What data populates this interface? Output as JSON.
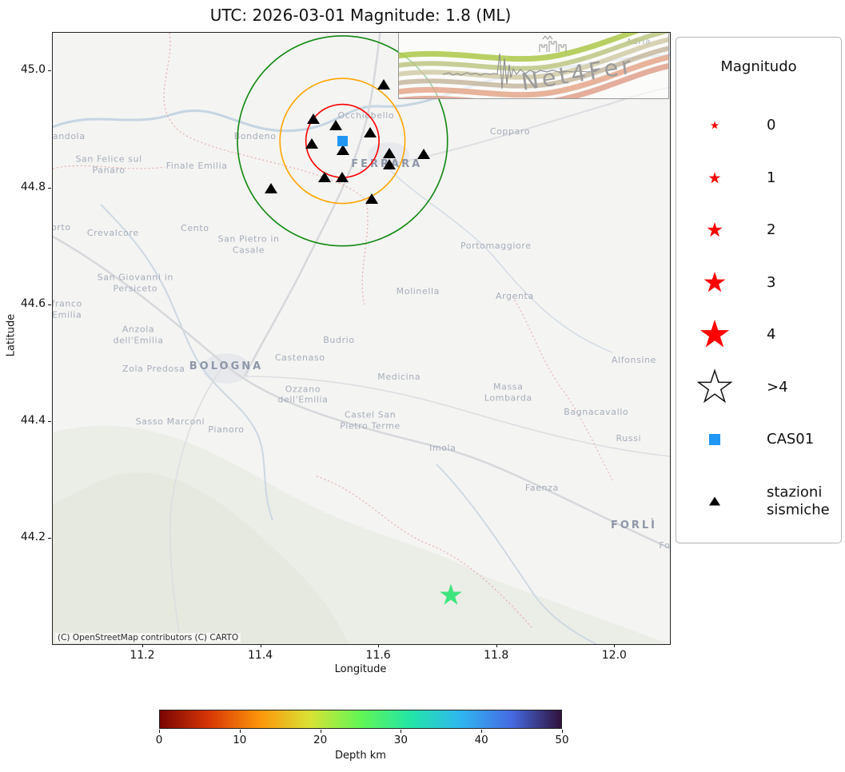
{
  "figure": {
    "title": "UTC: 2026-03-01 Magnitude: 1.8 (ML)",
    "attribution": "(C) OpenStreetMap contributors (C) CARTO"
  },
  "axes": {
    "xlabel": "Longitude",
    "ylabel": "Latitude",
    "x_ticks": [
      11.2,
      11.4,
      11.6,
      11.8,
      12.0
    ],
    "x_tick_labels": [
      "11.2",
      "11.4",
      "11.6",
      "11.8",
      "12.0"
    ],
    "y_ticks": [
      45.0,
      44.8,
      44.6,
      44.4,
      44.2
    ],
    "y_tick_labels": [
      "45.0",
      "44.8",
      "44.6",
      "44.4",
      "44.2"
    ]
  },
  "logo": {
    "brand": "Net4Fer",
    "basemap_label": "Adria"
  },
  "legend": {
    "title": "Magnitudo",
    "entries": [
      {
        "kind": "star",
        "label": "0",
        "size": 12,
        "fill": "#ff0000"
      },
      {
        "kind": "star",
        "label": "1",
        "size": 17,
        "fill": "#ff0000"
      },
      {
        "kind": "star",
        "label": "2",
        "size": 22,
        "fill": "#ff0000"
      },
      {
        "kind": "star",
        "label": "3",
        "size": 31,
        "fill": "#ff0000"
      },
      {
        "kind": "star",
        "label": "4",
        "size": 42,
        "fill": "#ff0000"
      },
      {
        "kind": "star",
        "label": ">4",
        "size": 47,
        "fill": "#ffffff",
        "stroke": "#111111"
      },
      {
        "kind": "square",
        "label": "CAS01",
        "size": 14,
        "fill": "#2196f3"
      },
      {
        "kind": "triangle",
        "label": "stazioni\nsismiche",
        "size": 14,
        "fill": "#000000"
      }
    ]
  },
  "colorbar": {
    "label": "Depth km",
    "ticks": [
      "0",
      "10",
      "20",
      "30",
      "40",
      "50"
    ],
    "min": 0,
    "max": 50,
    "gradient": [
      "#7a0403",
      "#d93806",
      "#fc960a",
      "#d8e234",
      "#62f655",
      "#23e5a6",
      "#2fb6f0",
      "#466be3",
      "#30123b"
    ]
  },
  "chart_data": {
    "type": "scatter",
    "projection": {
      "lon_range": [
        11.047,
        12.093
      ],
      "lat_range": [
        44.02,
        45.066
      ]
    },
    "event": {
      "date_utc": "2026-03-01",
      "magnitude": 1.8,
      "magnitude_type": "ML",
      "lon": 11.722,
      "lat": 44.104,
      "marker": "star",
      "color": "#3ee57e",
      "size": 32
    },
    "reference_station": {
      "id": "CAS01",
      "lon": 11.538,
      "lat": 44.881,
      "marker": "square",
      "color": "#2196f3"
    },
    "rings": [
      {
        "color": "#ff0000",
        "radius_deg": 0.062
      },
      {
        "color": "#ffa500",
        "radius_deg": 0.106
      },
      {
        "color": "#108810",
        "radius_deg": 0.178
      }
    ],
    "stations": [
      {
        "lon": 11.608,
        "lat": 44.977
      },
      {
        "lon": 11.489,
        "lat": 44.918
      },
      {
        "lon": 11.527,
        "lat": 44.907
      },
      {
        "lon": 11.586,
        "lat": 44.895
      },
      {
        "lon": 11.487,
        "lat": 44.876
      },
      {
        "lon": 11.539,
        "lat": 44.865
      },
      {
        "lon": 11.618,
        "lat": 44.859
      },
      {
        "lon": 11.677,
        "lat": 44.858
      },
      {
        "lon": 11.618,
        "lat": 44.84
      },
      {
        "lon": 11.509,
        "lat": 44.818
      },
      {
        "lon": 11.538,
        "lat": 44.818
      },
      {
        "lon": 11.418,
        "lat": 44.799
      },
      {
        "lon": 11.588,
        "lat": 44.781
      }
    ],
    "cities": [
      {
        "name": "randola",
        "lon": 11.071,
        "lat": 44.888,
        "tier": "town"
      },
      {
        "name": "Bondeno",
        "lon": 11.39,
        "lat": 44.888,
        "tier": "town"
      },
      {
        "name": "Occhiobello",
        "lon": 11.578,
        "lat": 44.924,
        "tier": "town"
      },
      {
        "name": "Copparo",
        "lon": 11.822,
        "lat": 44.896,
        "tier": "town"
      },
      {
        "name": "San Felice sul\nPanaro",
        "lon": 11.142,
        "lat": 44.84,
        "tier": "town"
      },
      {
        "name": "Finale Emilia",
        "lon": 11.291,
        "lat": 44.838,
        "tier": "town"
      },
      {
        "name": "FERRARA",
        "lon": 11.613,
        "lat": 44.84,
        "tier": "capital"
      },
      {
        "name": "orto",
        "lon": 11.061,
        "lat": 44.732,
        "tier": "town"
      },
      {
        "name": "Crevalcore",
        "lon": 11.149,
        "lat": 44.723,
        "tier": "town"
      },
      {
        "name": "Cento",
        "lon": 11.288,
        "lat": 44.731,
        "tier": "town"
      },
      {
        "name": "San Pietro in\nCasale",
        "lon": 11.379,
        "lat": 44.704,
        "tier": "town"
      },
      {
        "name": "Portomaggiore",
        "lon": 11.798,
        "lat": 44.701,
        "tier": "town"
      },
      {
        "name": "San Giovanni in\nPersiceto",
        "lon": 11.187,
        "lat": 44.638,
        "tier": "town"
      },
      {
        "name": "Molinella",
        "lon": 11.666,
        "lat": 44.623,
        "tier": "town"
      },
      {
        "name": "Argenta",
        "lon": 11.83,
        "lat": 44.615,
        "tier": "town"
      },
      {
        "name": "franco\nEmilia",
        "lon": 11.071,
        "lat": 44.593,
        "tier": "town"
      },
      {
        "name": "Anzola\ndell'Emilia",
        "lon": 11.192,
        "lat": 44.549,
        "tier": "town"
      },
      {
        "name": "Budrio",
        "lon": 11.532,
        "lat": 44.54,
        "tier": "town"
      },
      {
        "name": "Zola Predosa",
        "lon": 11.218,
        "lat": 44.49,
        "tier": "town"
      },
      {
        "name": "BOLOGNA",
        "lon": 11.341,
        "lat": 44.494,
        "tier": "capital"
      },
      {
        "name": "Castenaso",
        "lon": 11.466,
        "lat": 44.509,
        "tier": "town"
      },
      {
        "name": "Medicina",
        "lon": 11.634,
        "lat": 44.477,
        "tier": "town"
      },
      {
        "name": "Ozzano\ndell'Emilia",
        "lon": 11.471,
        "lat": 44.447,
        "tier": "town"
      },
      {
        "name": "Massa\nLombarda",
        "lon": 11.819,
        "lat": 44.451,
        "tier": "town"
      },
      {
        "name": "Alfonsine",
        "lon": 12.032,
        "lat": 44.505,
        "tier": "town"
      },
      {
        "name": "Bagnacavallo",
        "lon": 11.968,
        "lat": 44.416,
        "tier": "town"
      },
      {
        "name": "Sasso Marconi",
        "lon": 11.246,
        "lat": 44.4,
        "tier": "town"
      },
      {
        "name": "Pianoro",
        "lon": 11.341,
        "lat": 44.386,
        "tier": "town"
      },
      {
        "name": "Castel San\nPietro Terme",
        "lon": 11.585,
        "lat": 44.403,
        "tier": "town"
      },
      {
        "name": "Russi",
        "lon": 12.023,
        "lat": 44.371,
        "tier": "town"
      },
      {
        "name": "Imola",
        "lon": 11.708,
        "lat": 44.355,
        "tier": "town"
      },
      {
        "name": "Faenza",
        "lon": 11.876,
        "lat": 44.286,
        "tier": "town"
      },
      {
        "name": "FORLÌ",
        "lon": 12.032,
        "lat": 44.222,
        "tier": "capital"
      },
      {
        "name": "Fo",
        "lon": 12.084,
        "lat": 44.188,
        "tier": "town"
      }
    ]
  }
}
